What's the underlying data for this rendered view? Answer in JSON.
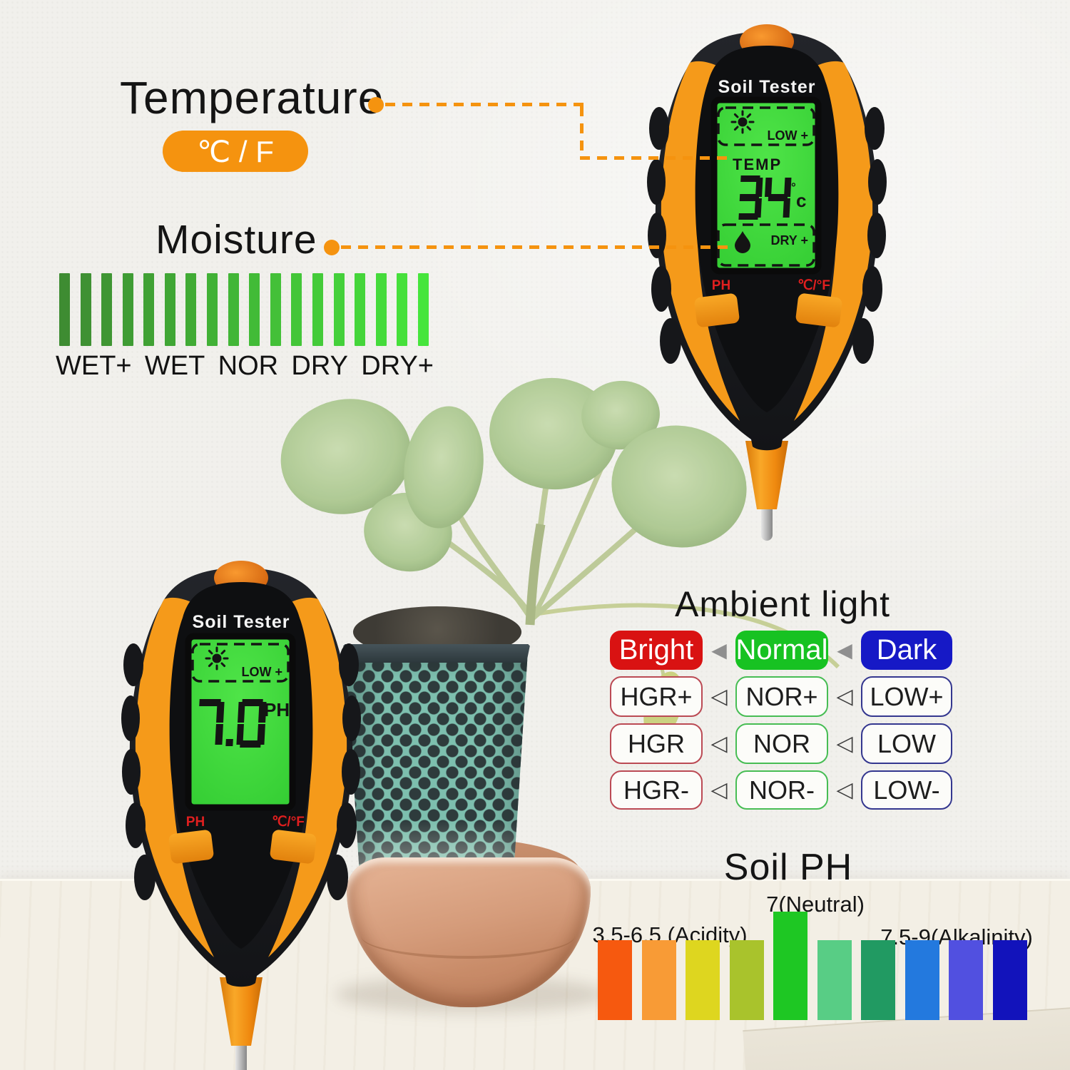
{
  "colors": {
    "accent_orange": "#f5930f",
    "device_orange": "#f59a1a",
    "lcd_green": "#3fd73b",
    "label_red": "#e01f1f"
  },
  "annotations": {
    "temperature_title": "Temperature",
    "temperature_badge": "℃ / F",
    "moisture_title": "Moisture"
  },
  "moisture_scale": {
    "labels": [
      "WET+",
      "WET",
      "NOR",
      "DRY",
      "DRY+"
    ],
    "bar_colors": [
      "#3e8c32",
      "#3f9133",
      "#3f9633",
      "#3f9c34",
      "#40a134",
      "#40a635",
      "#41ab35",
      "#41b136",
      "#42b637",
      "#42bb37",
      "#43c038",
      "#43c638",
      "#44cb39",
      "#44d03a",
      "#45d53a",
      "#45db3b",
      "#46e03b",
      "#46e53c"
    ]
  },
  "devices": {
    "top_right": {
      "brand": "Soil Tester",
      "lcd": {
        "light_level": "LOW +",
        "mode": "TEMP",
        "value": "34",
        "unit_degree": "°",
        "unit_letter": "c",
        "moisture_level": "DRY +"
      },
      "button_left_label": "PH",
      "button_right_label": "℃/°F"
    },
    "bottom_left": {
      "brand": "Soil Tester",
      "lcd": {
        "light_level": "LOW +",
        "value": "7.0",
        "unit": "PH"
      },
      "button_left_label": "PH",
      "button_right_label": "℃/°F"
    }
  },
  "ambient_light": {
    "title": "Ambient light",
    "triangle_solid": "◀",
    "triangle_outline": "◁",
    "columns": [
      {
        "header": "Bright",
        "header_color": "#d91212",
        "border_color": "#bb4a54",
        "rows": [
          "HGR+",
          "HGR",
          "HGR-"
        ]
      },
      {
        "header": "Normal",
        "header_color": "#17c222",
        "border_color": "#47bd54",
        "rows": [
          "NOR+",
          "NOR",
          "NOR-"
        ]
      },
      {
        "header": "Dark",
        "header_color": "#1619c6",
        "border_color": "#34378f",
        "rows": [
          "LOW+",
          "LOW",
          "LOW-"
        ]
      }
    ]
  },
  "soil_ph": {
    "title": "Soil PH",
    "acidity_label": "3.5-6.5 (Acidity)",
    "neutral_label": "7(Neutral)",
    "alkalinity_label": "7.5-9(Alkalinity)",
    "bar_colors": [
      "#f6590f",
      "#f89b36",
      "#ded61f",
      "#a9c32c",
      "#1ec723",
      "#58cd85",
      "#219a62",
      "#2379de",
      "#5150e0",
      "#1213bb"
    ],
    "tall_index": 4
  },
  "chart_data": [
    {
      "type": "bar",
      "title": "Moisture scale",
      "categories": [
        "WET+",
        "WET",
        "NOR",
        "DRY",
        "DRY+"
      ],
      "bar_count": 18,
      "equal_heights": true,
      "color_range": [
        "#3e8c32",
        "#46e53c"
      ]
    },
    {
      "type": "bar",
      "title": "Soil PH",
      "categories": [
        "3.5-6.5 (Acidity)",
        "7(Neutral)",
        "7.5-9(Alkalinity)"
      ],
      "bar_count": 10,
      "highlight_bar_index": 4,
      "colors": [
        "#f6590f",
        "#f89b36",
        "#ded61f",
        "#a9c32c",
        "#1ec723",
        "#58cd85",
        "#219a62",
        "#2379de",
        "#5150e0",
        "#1213bb"
      ]
    }
  ]
}
